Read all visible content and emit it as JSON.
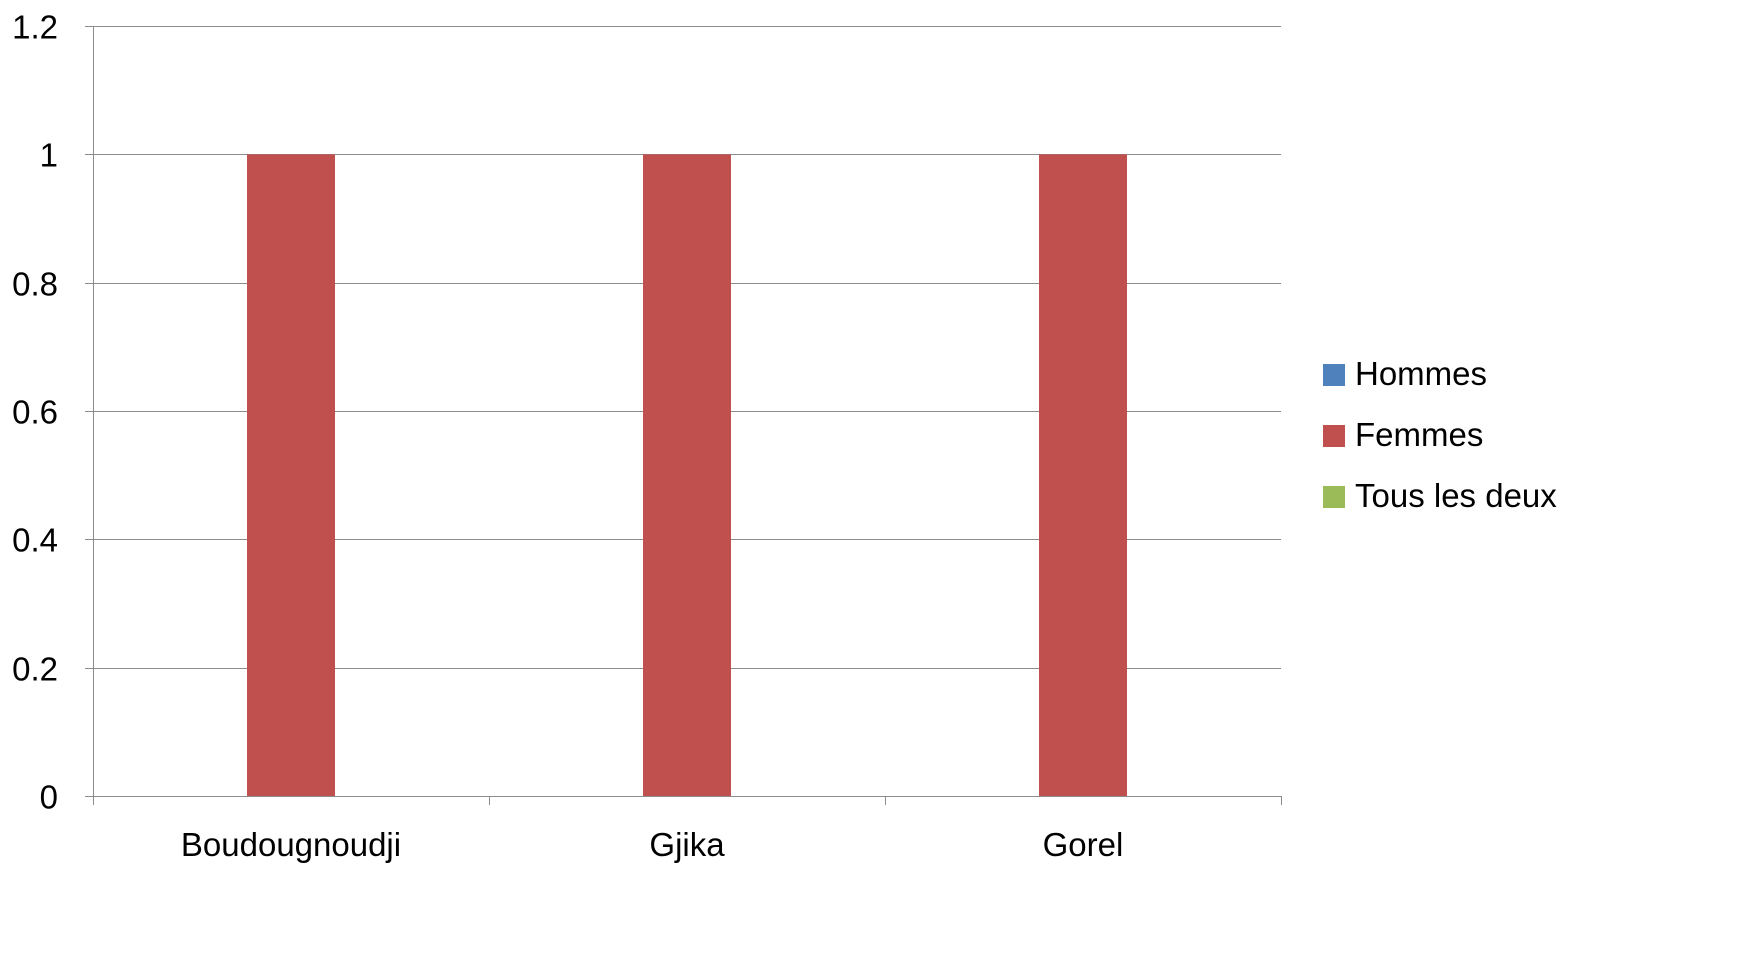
{
  "chart_data": {
    "type": "bar",
    "title": "",
    "xlabel": "",
    "ylabel": "",
    "categories": [
      "Boudougnoudji",
      "Gjika",
      "Gorel"
    ],
    "series": [
      {
        "name": "Hommes",
        "color": "#4f81bd",
        "values": [
          0,
          0,
          0
        ]
      },
      {
        "name": "Femmes",
        "color": "#c0504d",
        "values": [
          1,
          1,
          1
        ]
      },
      {
        "name": "Tous les deux",
        "color": "#9bbb59",
        "values": [
          0,
          0,
          0
        ]
      }
    ],
    "ylim": [
      0,
      1.2
    ],
    "yticks": [
      0,
      0.2,
      0.4,
      0.6,
      0.8,
      1,
      1.2
    ],
    "ytick_labels": [
      "0",
      "0.2",
      "0.4",
      "0.6",
      "0.8",
      "1",
      "1.2"
    ],
    "grid": true,
    "legend_position": "right"
  }
}
